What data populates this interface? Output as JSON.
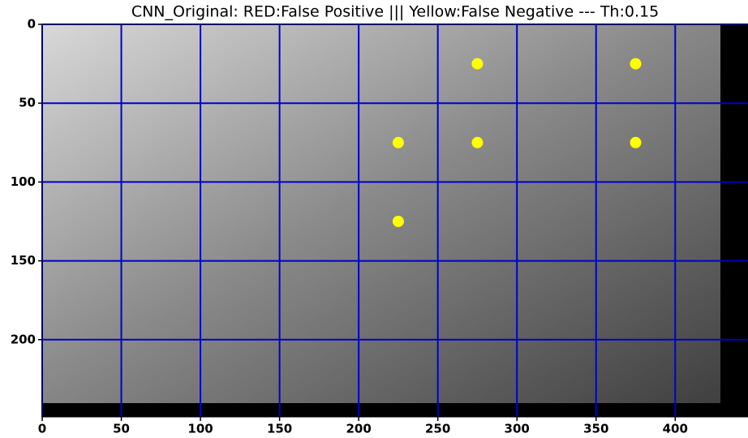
{
  "chart_data": {
    "type": "scatter",
    "title": "CNN_Original: RED:False Positive ||| Yellow:False Negative --- Th:0.15",
    "x": [
      225,
      225,
      275,
      275,
      375,
      375
    ],
    "values": [
      75,
      125,
      25,
      75,
      25,
      75
    ],
    "color": "#ffff00",
    "grid": true,
    "grid_color": "#0000cc",
    "xlim": [
      0,
      446
    ],
    "ylim": [
      249,
      0
    ],
    "xticks": [
      0,
      50,
      100,
      150,
      200,
      250,
      300,
      350,
      400
    ],
    "yticks": [
      0,
      50,
      100,
      150,
      200
    ]
  }
}
